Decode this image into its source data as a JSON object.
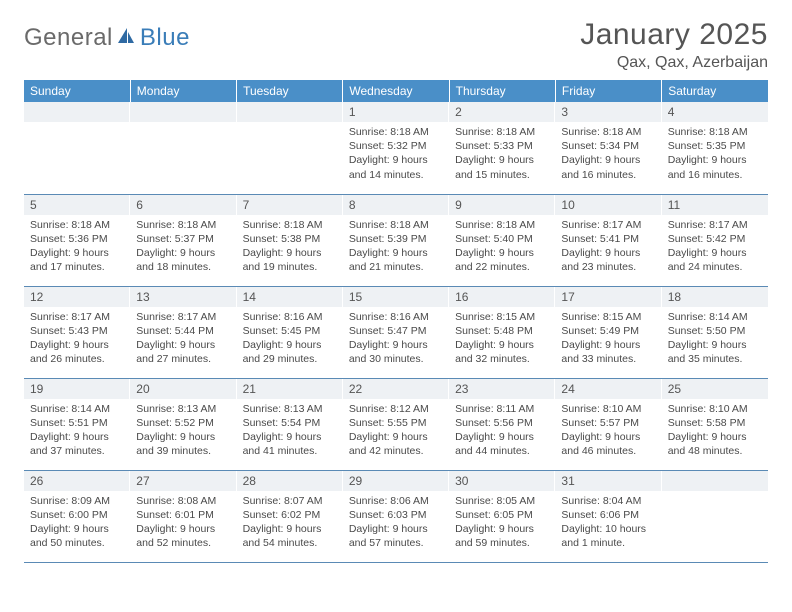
{
  "brand": {
    "part1": "General",
    "part2": "Blue"
  },
  "title": "January 2025",
  "location": "Qax, Qax, Azerbaijan",
  "colors": {
    "header_bg": "#4a8fc8",
    "header_text": "#ffffff",
    "daynum_bg": "#eef1f4",
    "border": "#5a8ab5",
    "logo_gray": "#6a6a6a",
    "logo_blue": "#3a7db8"
  },
  "weekdays": [
    "Sunday",
    "Monday",
    "Tuesday",
    "Wednesday",
    "Thursday",
    "Friday",
    "Saturday"
  ],
  "weeks": [
    [
      {
        "n": "",
        "t": ""
      },
      {
        "n": "",
        "t": ""
      },
      {
        "n": "",
        "t": ""
      },
      {
        "n": "1",
        "t": "Sunrise: 8:18 AM\nSunset: 5:32 PM\nDaylight: 9 hours and 14 minutes."
      },
      {
        "n": "2",
        "t": "Sunrise: 8:18 AM\nSunset: 5:33 PM\nDaylight: 9 hours and 15 minutes."
      },
      {
        "n": "3",
        "t": "Sunrise: 8:18 AM\nSunset: 5:34 PM\nDaylight: 9 hours and 16 minutes."
      },
      {
        "n": "4",
        "t": "Sunrise: 8:18 AM\nSunset: 5:35 PM\nDaylight: 9 hours and 16 minutes."
      }
    ],
    [
      {
        "n": "5",
        "t": "Sunrise: 8:18 AM\nSunset: 5:36 PM\nDaylight: 9 hours and 17 minutes."
      },
      {
        "n": "6",
        "t": "Sunrise: 8:18 AM\nSunset: 5:37 PM\nDaylight: 9 hours and 18 minutes."
      },
      {
        "n": "7",
        "t": "Sunrise: 8:18 AM\nSunset: 5:38 PM\nDaylight: 9 hours and 19 minutes."
      },
      {
        "n": "8",
        "t": "Sunrise: 8:18 AM\nSunset: 5:39 PM\nDaylight: 9 hours and 21 minutes."
      },
      {
        "n": "9",
        "t": "Sunrise: 8:18 AM\nSunset: 5:40 PM\nDaylight: 9 hours and 22 minutes."
      },
      {
        "n": "10",
        "t": "Sunrise: 8:17 AM\nSunset: 5:41 PM\nDaylight: 9 hours and 23 minutes."
      },
      {
        "n": "11",
        "t": "Sunrise: 8:17 AM\nSunset: 5:42 PM\nDaylight: 9 hours and 24 minutes."
      }
    ],
    [
      {
        "n": "12",
        "t": "Sunrise: 8:17 AM\nSunset: 5:43 PM\nDaylight: 9 hours and 26 minutes."
      },
      {
        "n": "13",
        "t": "Sunrise: 8:17 AM\nSunset: 5:44 PM\nDaylight: 9 hours and 27 minutes."
      },
      {
        "n": "14",
        "t": "Sunrise: 8:16 AM\nSunset: 5:45 PM\nDaylight: 9 hours and 29 minutes."
      },
      {
        "n": "15",
        "t": "Sunrise: 8:16 AM\nSunset: 5:47 PM\nDaylight: 9 hours and 30 minutes."
      },
      {
        "n": "16",
        "t": "Sunrise: 8:15 AM\nSunset: 5:48 PM\nDaylight: 9 hours and 32 minutes."
      },
      {
        "n": "17",
        "t": "Sunrise: 8:15 AM\nSunset: 5:49 PM\nDaylight: 9 hours and 33 minutes."
      },
      {
        "n": "18",
        "t": "Sunrise: 8:14 AM\nSunset: 5:50 PM\nDaylight: 9 hours and 35 minutes."
      }
    ],
    [
      {
        "n": "19",
        "t": "Sunrise: 8:14 AM\nSunset: 5:51 PM\nDaylight: 9 hours and 37 minutes."
      },
      {
        "n": "20",
        "t": "Sunrise: 8:13 AM\nSunset: 5:52 PM\nDaylight: 9 hours and 39 minutes."
      },
      {
        "n": "21",
        "t": "Sunrise: 8:13 AM\nSunset: 5:54 PM\nDaylight: 9 hours and 41 minutes."
      },
      {
        "n": "22",
        "t": "Sunrise: 8:12 AM\nSunset: 5:55 PM\nDaylight: 9 hours and 42 minutes."
      },
      {
        "n": "23",
        "t": "Sunrise: 8:11 AM\nSunset: 5:56 PM\nDaylight: 9 hours and 44 minutes."
      },
      {
        "n": "24",
        "t": "Sunrise: 8:10 AM\nSunset: 5:57 PM\nDaylight: 9 hours and 46 minutes."
      },
      {
        "n": "25",
        "t": "Sunrise: 8:10 AM\nSunset: 5:58 PM\nDaylight: 9 hours and 48 minutes."
      }
    ],
    [
      {
        "n": "26",
        "t": "Sunrise: 8:09 AM\nSunset: 6:00 PM\nDaylight: 9 hours and 50 minutes."
      },
      {
        "n": "27",
        "t": "Sunrise: 8:08 AM\nSunset: 6:01 PM\nDaylight: 9 hours and 52 minutes."
      },
      {
        "n": "28",
        "t": "Sunrise: 8:07 AM\nSunset: 6:02 PM\nDaylight: 9 hours and 54 minutes."
      },
      {
        "n": "29",
        "t": "Sunrise: 8:06 AM\nSunset: 6:03 PM\nDaylight: 9 hours and 57 minutes."
      },
      {
        "n": "30",
        "t": "Sunrise: 8:05 AM\nSunset: 6:05 PM\nDaylight: 9 hours and 59 minutes."
      },
      {
        "n": "31",
        "t": "Sunrise: 8:04 AM\nSunset: 6:06 PM\nDaylight: 10 hours and 1 minute."
      },
      {
        "n": "",
        "t": ""
      }
    ]
  ]
}
